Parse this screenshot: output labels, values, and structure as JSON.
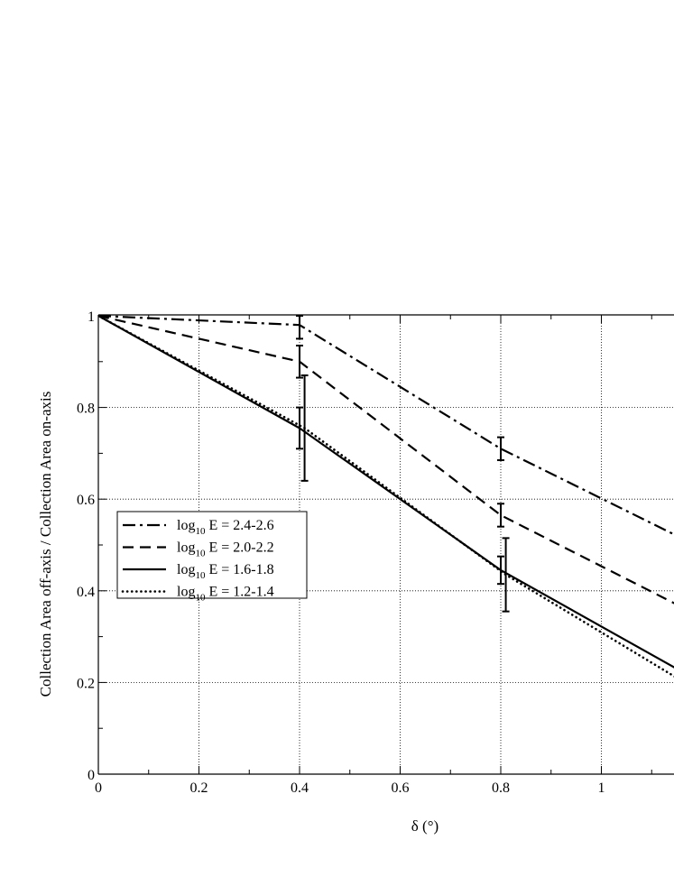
{
  "chart_data": {
    "type": "line",
    "title": "",
    "xlabel": "δ (°)",
    "ylabel": "Collection Area off-axis / Collection Area on-axis",
    "xlim": [
      0,
      1.15
    ],
    "ylim": [
      0,
      1
    ],
    "x_ticks": [
      0,
      0.2,
      0.4,
      0.6,
      0.8,
      1
    ],
    "x_tick_labels": [
      "0",
      "0.2",
      "0.4",
      "0.6",
      "0.8",
      "1"
    ],
    "y_ticks": [
      0,
      0.2,
      0.4,
      0.6,
      0.8,
      1
    ],
    "y_tick_labels": [
      "0",
      "0.2",
      "0.4",
      "0.6",
      "0.8",
      "1"
    ],
    "grid": true,
    "legend_position": "center-left",
    "series": [
      {
        "name": "log10 E = 2.4-2.6",
        "legend": {
          "prefix": "log",
          "sub": "10",
          "suffix": " E = 2.4-2.6"
        },
        "style": "dash-dot",
        "points": [
          [
            0,
            1.0
          ],
          [
            0.4,
            0.98
          ],
          [
            0.8,
            0.71
          ],
          [
            1.15,
            0.52
          ]
        ],
        "error_bars": [
          {
            "x": 0.4,
            "y": 0.98,
            "low": 0.95,
            "high": 1.0
          },
          {
            "x": 0.8,
            "y": 0.71,
            "low": 0.685,
            "high": 0.735
          }
        ]
      },
      {
        "name": "log10 E = 2.0-2.2",
        "legend": {
          "prefix": "log",
          "sub": "10",
          "suffix": " E = 2.0-2.2"
        },
        "style": "dashed",
        "points": [
          [
            0,
            1.0
          ],
          [
            0.4,
            0.9
          ],
          [
            0.8,
            0.565
          ],
          [
            1.15,
            0.37
          ]
        ],
        "error_bars": [
          {
            "x": 0.4,
            "y": 0.9,
            "low": 0.865,
            "high": 0.935
          },
          {
            "x": 0.8,
            "y": 0.565,
            "low": 0.54,
            "high": 0.59
          }
        ]
      },
      {
        "name": "log10 E = 1.6-1.8",
        "legend": {
          "prefix": "log",
          "sub": "10",
          "suffix": " E = 1.6-1.8"
        },
        "style": "solid",
        "points": [
          [
            0,
            1.0
          ],
          [
            0.4,
            0.755
          ],
          [
            0.8,
            0.445
          ],
          [
            1.15,
            0.23
          ]
        ],
        "error_bars": [
          {
            "x": 0.4,
            "y": 0.755,
            "low": 0.71,
            "high": 0.8
          },
          {
            "x": 0.8,
            "y": 0.445,
            "low": 0.415,
            "high": 0.475
          }
        ]
      },
      {
        "name": "log10 E = 1.2-1.4",
        "legend": {
          "prefix": "log",
          "sub": "10",
          "suffix": " E = 1.2-1.4"
        },
        "style": "dotted",
        "points": [
          [
            0,
            1.0
          ],
          [
            0.41,
            0.755
          ],
          [
            0.81,
            0.435
          ],
          [
            1.15,
            0.21
          ]
        ],
        "error_bars": [
          {
            "x": 0.41,
            "y": 0.755,
            "low": 0.64,
            "high": 0.87
          },
          {
            "x": 0.81,
            "y": 0.435,
            "low": 0.355,
            "high": 0.515
          }
        ]
      }
    ]
  }
}
